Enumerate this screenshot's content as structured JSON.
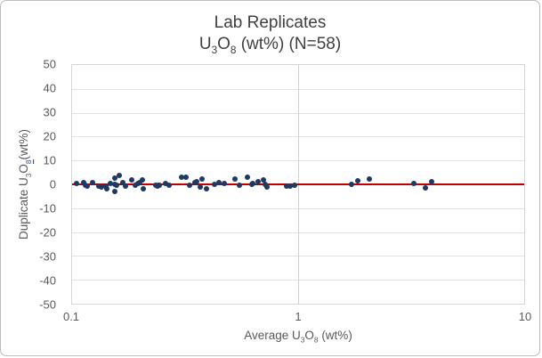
{
  "figure": {
    "title_line1": "Lab Replicates",
    "title_line2_parts": {
      "u": "U",
      "s3": "3",
      "o": "O",
      "s8": "8",
      "rest": " (wt%) (N=58)"
    },
    "x_axis_title_parts": {
      "prefix": "Average U",
      "s3": "3",
      "o": "O",
      "s8": "8",
      "rest": " (wt%)"
    },
    "y_axis_title_parts": {
      "prefix": "Duplicate U",
      "s3": "3",
      "o": "O",
      "s8": "8",
      "rest": "(wt%)"
    },
    "colors": {
      "marker": "#1f3864",
      "reference_line": "#c00000",
      "gridline": "#e2e2e2",
      "axis_text": "#595959",
      "title_text": "#404040",
      "plot_border": "#d6d6d6"
    }
  },
  "chart_data": {
    "type": "scatter",
    "title": "Lab Replicates",
    "subtitle": "U3O8 (wt%) (N=58)",
    "n": 58,
    "xlabel": "Average U3O8 (wt%)",
    "ylabel": "Duplicate U3O8 (wt%)",
    "x_scale": "log",
    "xlim": [
      0.1,
      10
    ],
    "ylim": [
      -50,
      50
    ],
    "x_ticks": [
      0.1,
      1,
      10
    ],
    "y_ticks": [
      50,
      40,
      30,
      20,
      10,
      0,
      -10,
      -20,
      -30,
      -40,
      -50
    ],
    "grid": true,
    "legend": false,
    "reference_line_y": 0,
    "points": [
      [
        0.105,
        0.3
      ],
      [
        0.112,
        0.9
      ],
      [
        0.115,
        -0.3
      ],
      [
        0.117,
        -0.6
      ],
      [
        0.123,
        0.6
      ],
      [
        0.131,
        -0.6
      ],
      [
        0.135,
        -1.0
      ],
      [
        0.141,
        -0.7
      ],
      [
        0.143,
        -2.0
      ],
      [
        0.148,
        0.4
      ],
      [
        0.154,
        2.6
      ],
      [
        0.154,
        0.0
      ],
      [
        0.155,
        -2.8
      ],
      [
        0.158,
        -0.5
      ],
      [
        0.161,
        3.9
      ],
      [
        0.168,
        0.9
      ],
      [
        0.172,
        -0.7
      ],
      [
        0.183,
        1.7
      ],
      [
        0.19,
        -0.2
      ],
      [
        0.195,
        0.3
      ],
      [
        0.199,
        0.6
      ],
      [
        0.204,
        2.0
      ],
      [
        0.206,
        -2.0
      ],
      [
        0.234,
        -0.3
      ],
      [
        0.238,
        -0.7
      ],
      [
        0.242,
        -0.5
      ],
      [
        0.244,
        -0.2
      ],
      [
        0.26,
        0.3
      ],
      [
        0.268,
        -0.4
      ],
      [
        0.306,
        2.8
      ],
      [
        0.32,
        3.1
      ],
      [
        0.332,
        -0.4
      ],
      [
        0.35,
        0.6
      ],
      [
        0.357,
        1.2
      ],
      [
        0.37,
        -1.2
      ],
      [
        0.377,
        2.3
      ],
      [
        0.394,
        -1.9
      ],
      [
        0.428,
        0.0
      ],
      [
        0.448,
        0.8
      ],
      [
        0.472,
        0.4
      ],
      [
        0.525,
        2.3
      ],
      [
        0.55,
        -0.3
      ],
      [
        0.597,
        3.1
      ],
      [
        0.625,
        0.0
      ],
      [
        0.63,
        0.5
      ],
      [
        0.664,
        1.2
      ],
      [
        0.701,
        1.9
      ],
      [
        0.714,
        0.0
      ],
      [
        0.727,
        -1.2
      ],
      [
        0.887,
        -0.8
      ],
      [
        0.92,
        -0.9
      ],
      [
        0.962,
        -0.5
      ],
      [
        1.72,
        0.1
      ],
      [
        1.83,
        1.5
      ],
      [
        2.06,
        2.3
      ],
      [
        3.26,
        0.4
      ],
      [
        3.64,
        -1.5
      ],
      [
        3.88,
        1.2
      ]
    ]
  }
}
